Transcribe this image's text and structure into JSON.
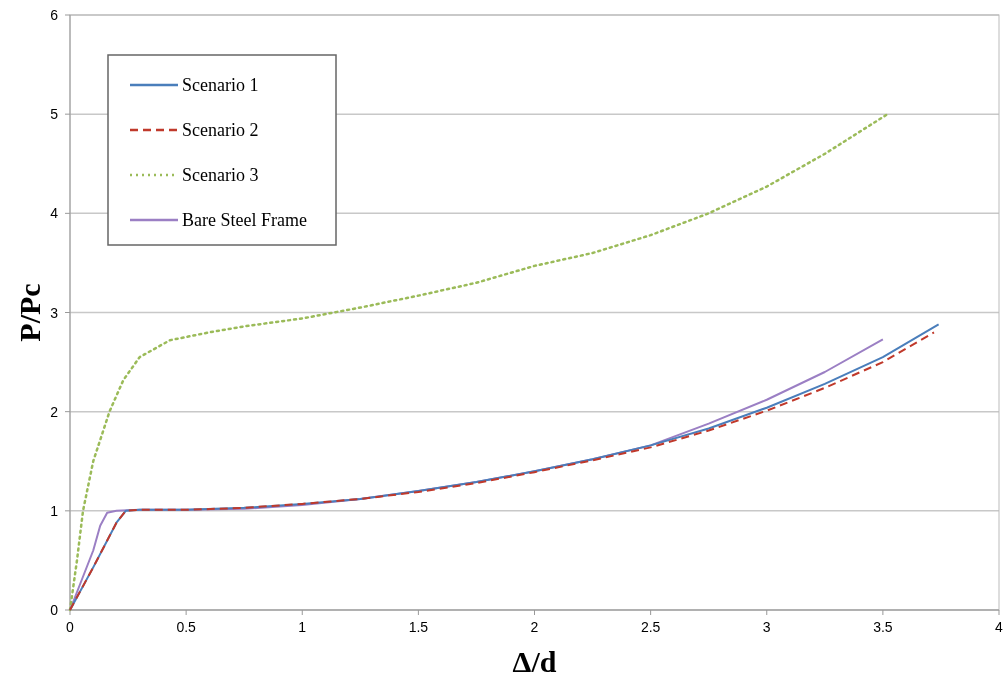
{
  "chart_data": {
    "type": "line",
    "xlabel": "Δ/d",
    "ylabel": "P/Pc",
    "xlim": [
      0,
      4
    ],
    "ylim": [
      0,
      6
    ],
    "xticks": [
      0,
      0.5,
      1,
      1.5,
      2,
      2.5,
      3,
      3.5,
      4
    ],
    "yticks": [
      0,
      1,
      2,
      3,
      4,
      5,
      6
    ],
    "grid": "y",
    "legend": "top left",
    "series": [
      {
        "name": "Scenario 1",
        "color": "#4a7ebb",
        "line_style": "solid",
        "x": [
          0,
          0.1,
          0.2,
          0.24,
          0.3,
          0.5,
          0.75,
          1,
          1.25,
          1.5,
          1.75,
          2,
          2.25,
          2.5,
          2.75,
          3,
          3.25,
          3.5,
          3.74
        ],
        "values": [
          0,
          0.43,
          0.88,
          1,
          1.01,
          1.01,
          1.03,
          1.07,
          1.12,
          1.2,
          1.29,
          1.4,
          1.52,
          1.66,
          1.83,
          2.04,
          2.28,
          2.55,
          2.88
        ]
      },
      {
        "name": "Scenario 2",
        "color": "#c0392b",
        "line_style": "dashed",
        "x": [
          0,
          0.1,
          0.2,
          0.24,
          0.3,
          0.5,
          0.75,
          1,
          1.25,
          1.5,
          1.75,
          2,
          2.25,
          2.5,
          2.75,
          3,
          3.25,
          3.5,
          3.72
        ],
        "values": [
          0,
          0.43,
          0.88,
          1,
          1.01,
          1.01,
          1.03,
          1.07,
          1.12,
          1.19,
          1.28,
          1.39,
          1.51,
          1.64,
          1.81,
          2.01,
          2.24,
          2.5,
          2.8
        ]
      },
      {
        "name": "Scenario 3",
        "color": "#9bbb59",
        "line_style": "dotted",
        "x": [
          0,
          0.03,
          0.056,
          0.1,
          0.17,
          0.23,
          0.3,
          0.43,
          0.6,
          0.75,
          1,
          1.25,
          1.5,
          1.75,
          2,
          2.25,
          2.5,
          2.75,
          3,
          3.25,
          3.52
        ],
        "values": [
          0,
          0.5,
          1,
          1.5,
          2,
          2.32,
          2.55,
          2.72,
          2.8,
          2.86,
          2.94,
          3.05,
          3.17,
          3.3,
          3.47,
          3.6,
          3.78,
          4,
          4.27,
          4.6,
          5
        ]
      },
      {
        "name": "Bare Steel Frame",
        "color": "#9b7fc4",
        "line_style": "solid",
        "x": [
          0,
          0.05,
          0.1,
          0.13,
          0.16,
          0.2,
          0.3,
          0.5,
          0.75,
          1,
          1.25,
          1.5,
          1.75,
          2,
          2.25,
          2.5,
          2.75,
          3,
          3.25,
          3.5
        ],
        "values": [
          0,
          0.3,
          0.6,
          0.85,
          0.98,
          1,
          1.01,
          1.01,
          1.02,
          1.06,
          1.12,
          1.2,
          1.29,
          1.4,
          1.52,
          1.66,
          1.88,
          2.12,
          2.4,
          2.73
        ]
      }
    ]
  }
}
